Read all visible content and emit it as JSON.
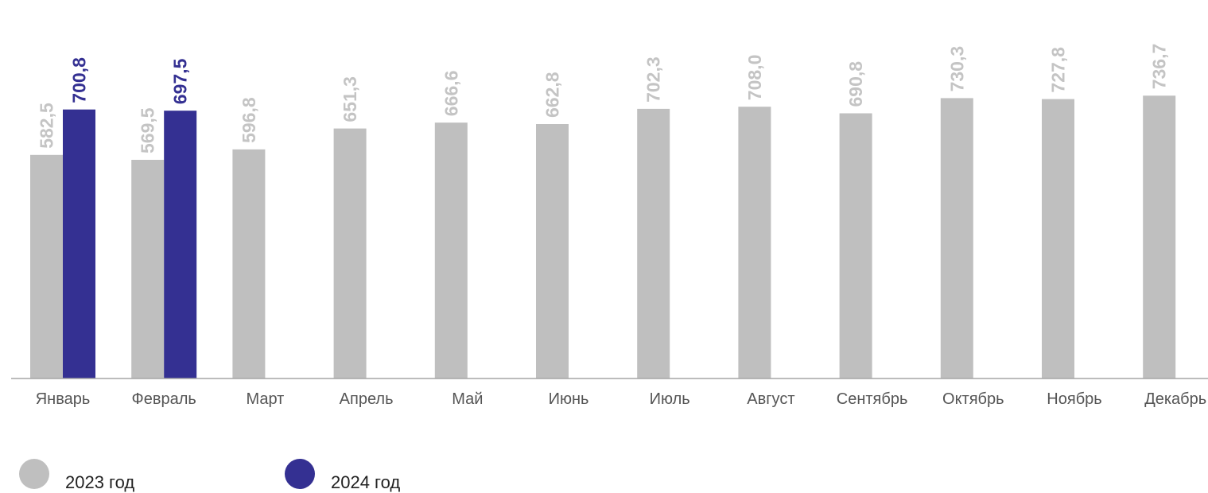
{
  "chart_data": {
    "type": "bar",
    "title": "",
    "xlabel": "",
    "ylabel": "",
    "categories": [
      "Январь",
      "Февраль",
      "Март",
      "Апрель",
      "Май",
      "Июнь",
      "Июль",
      "Август",
      "Сентябрь",
      "Октябрь",
      "Ноябрь",
      "Декабрь"
    ],
    "series": [
      {
        "name": "2023 год",
        "color": "#bfbfbf",
        "label_color": "#c4c4c4",
        "values": [
          582.5,
          569.5,
          596.8,
          651.3,
          666.6,
          662.8,
          702.3,
          708.0,
          690.8,
          730.3,
          727.8,
          736.7
        ],
        "labels": [
          "582,5",
          "569,5",
          "596,8",
          "651,3",
          "666,6",
          "662,8",
          "702,3",
          "708,0",
          "690,8",
          "730,3",
          "727,8",
          "736,7"
        ]
      },
      {
        "name": "2024 год",
        "color": "#343092",
        "label_color": "#343092",
        "values": [
          700.8,
          697.5,
          null,
          null,
          null,
          null,
          null,
          null,
          null,
          null,
          null,
          null
        ],
        "labels": [
          "700,8",
          "697,5",
          "",
          "",
          "",
          "",
          "",
          "",
          "",
          "",
          "",
          ""
        ]
      }
    ],
    "grid": false,
    "legend_position": "bottom-left"
  }
}
